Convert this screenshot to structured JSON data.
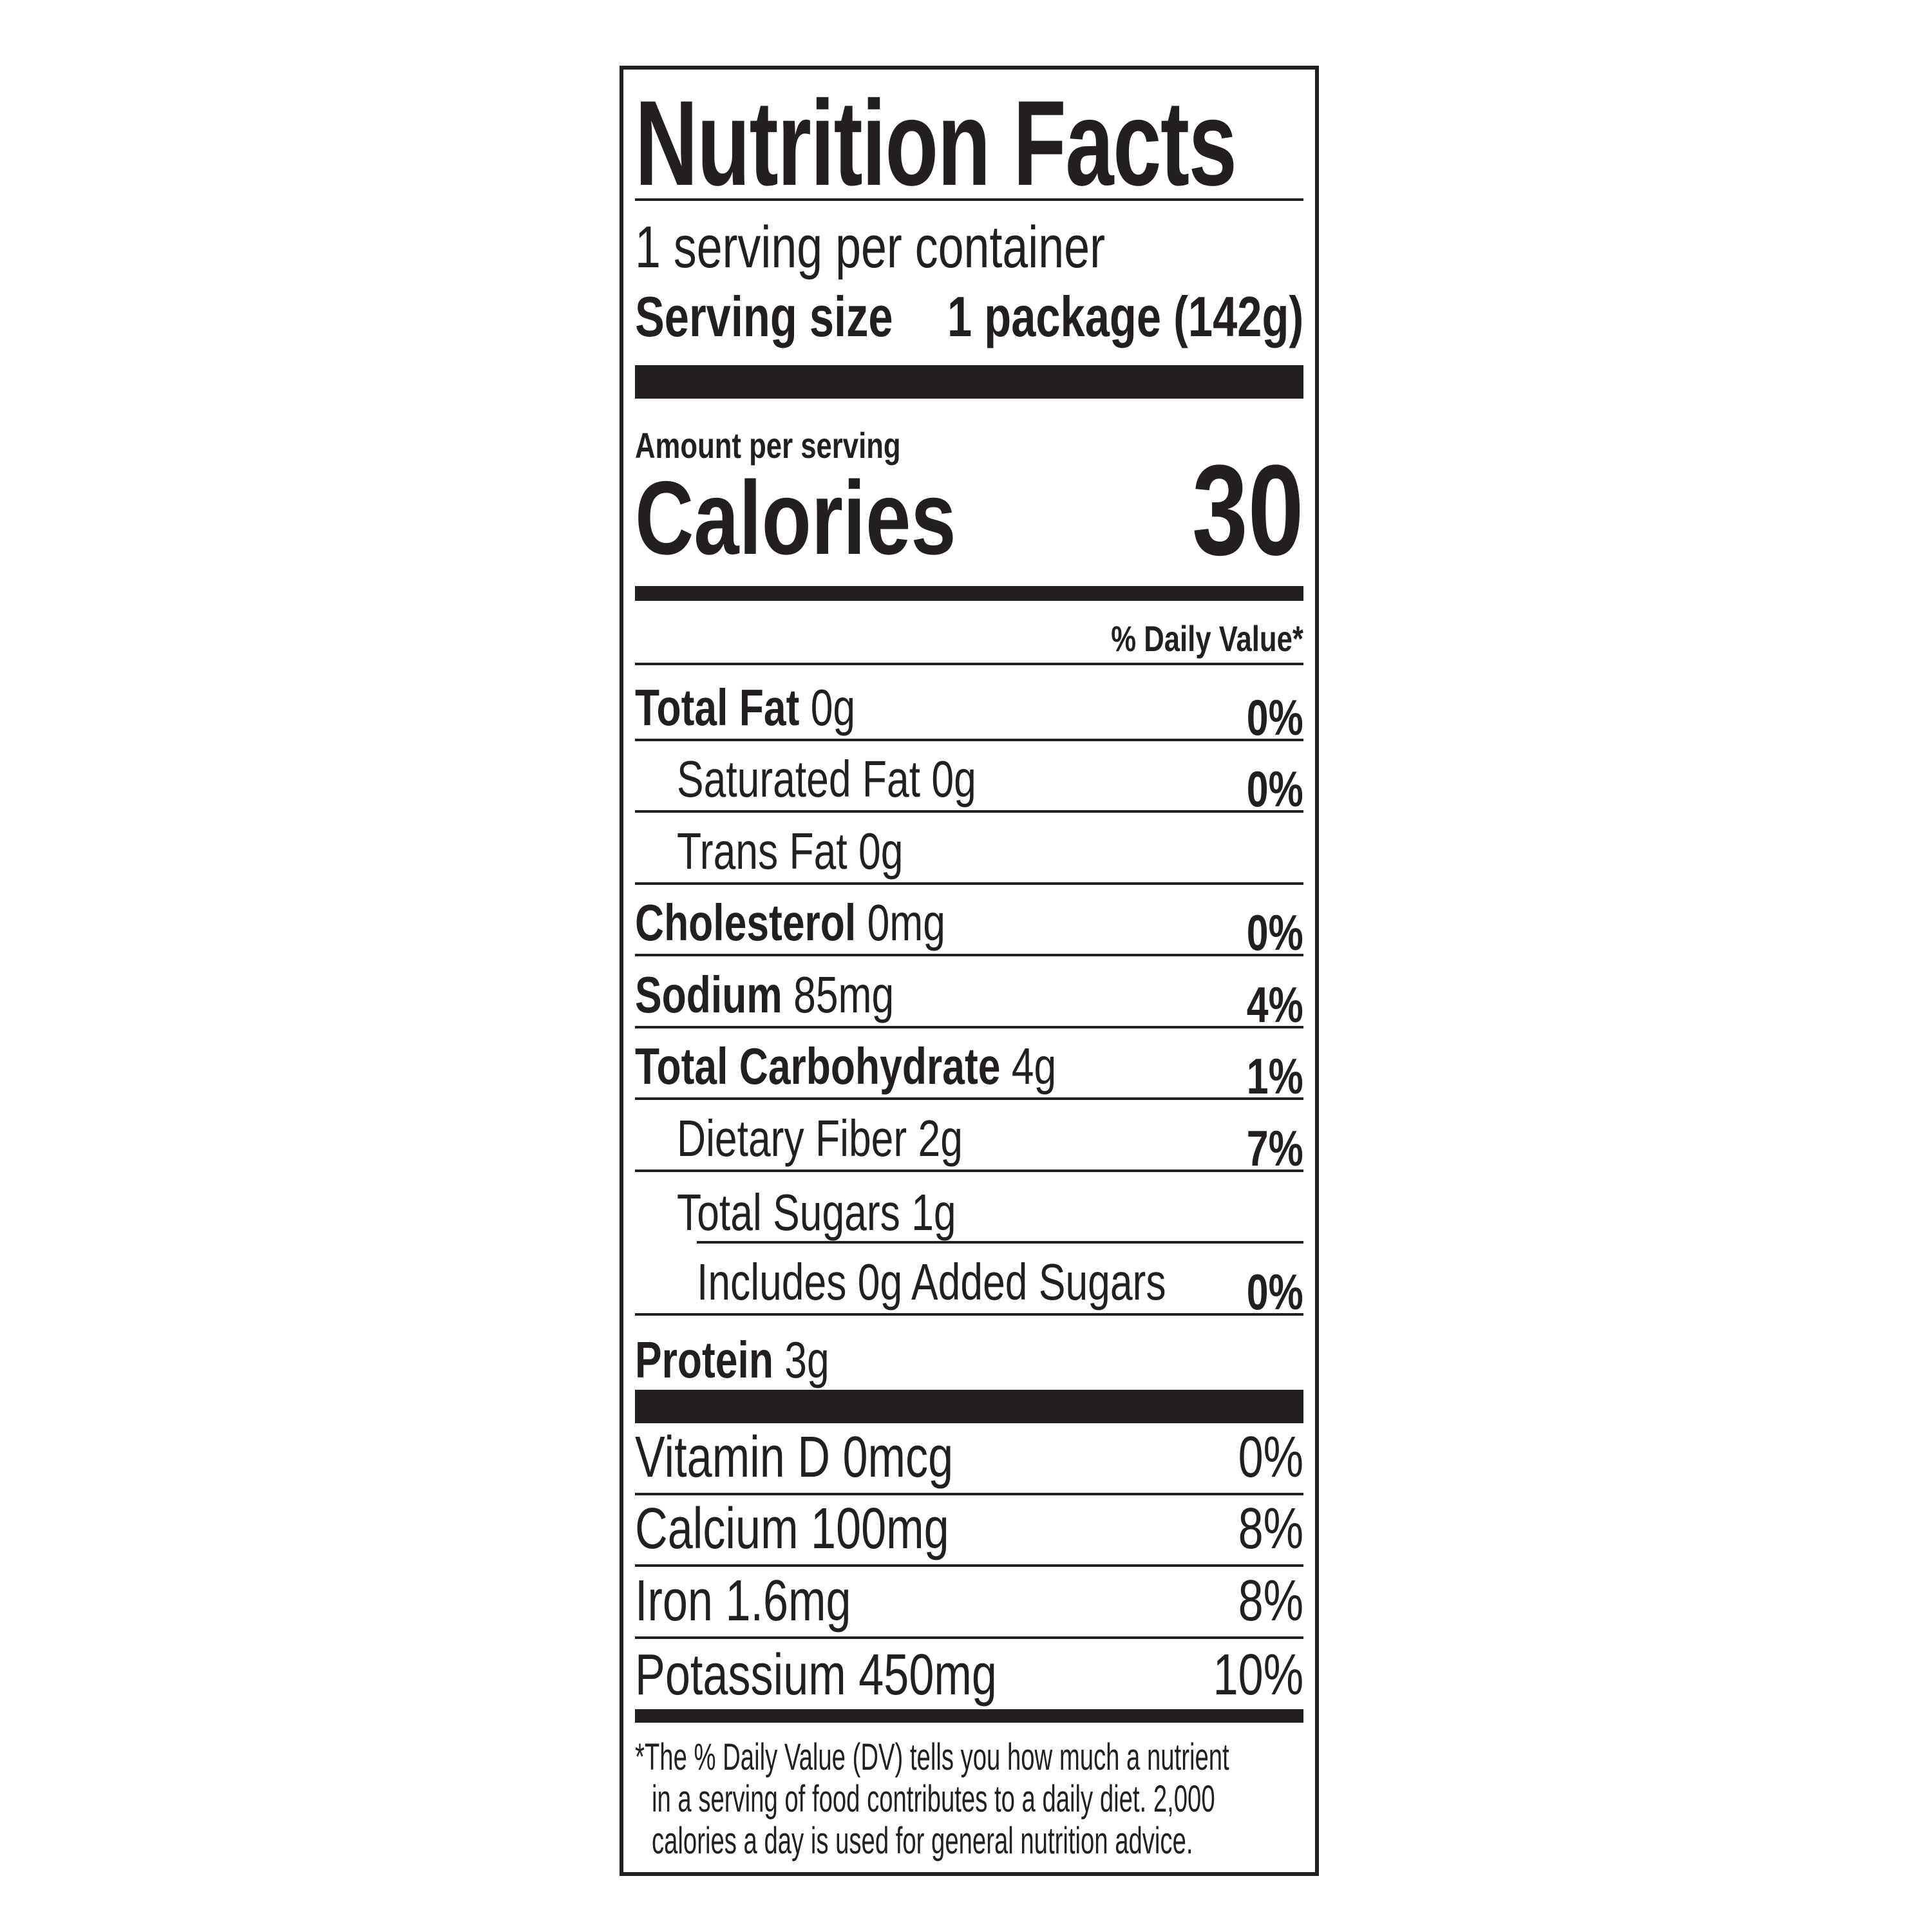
{
  "title": "Nutrition Facts",
  "servings_per_container": "1 serving per container",
  "serving_size": {
    "label": "Serving size",
    "value": "1 package (142g)"
  },
  "amount_per_serving": "Amount per serving",
  "calories": {
    "label": "Calories",
    "value": "30"
  },
  "daily_value_header": "% Daily Value*",
  "nutrients": [
    {
      "name": "Total Fat",
      "amount": "0g",
      "dv": "0%"
    },
    {
      "name": "Saturated Fat",
      "amount": "0g",
      "dv": "0%"
    },
    {
      "name": "Trans Fat",
      "amount": "0g",
      "dv": ""
    },
    {
      "name": "Cholesterol",
      "amount": "0mg",
      "dv": "0%"
    },
    {
      "name": "Sodium",
      "amount": "85mg",
      "dv": "4%"
    },
    {
      "name": "Total Carbohydrate",
      "amount": "4g",
      "dv": "1%"
    },
    {
      "name": "Dietary Fiber",
      "amount": "2g",
      "dv": "7%"
    },
    {
      "name": "Total Sugars",
      "amount": "1g",
      "dv": ""
    },
    {
      "name": "Includes 0g Added Sugars",
      "amount": "",
      "dv": "0%"
    },
    {
      "name": "Protein",
      "amount": "3g",
      "dv": ""
    }
  ],
  "vitamins": [
    {
      "name": "Vitamin D 0mcg",
      "dv": "0%"
    },
    {
      "name": "Calcium 100mg",
      "dv": "8%"
    },
    {
      "name": "Iron 1.6mg",
      "dv": "8%"
    },
    {
      "name": "Potassium 450mg",
      "dv": "10%"
    }
  ],
  "footnote": [
    "*The % Daily Value (DV) tells you how much a nutrient",
    "in a serving of food contributes to a daily diet. 2,000",
    "calories a day is used for general nutrition advice."
  ]
}
